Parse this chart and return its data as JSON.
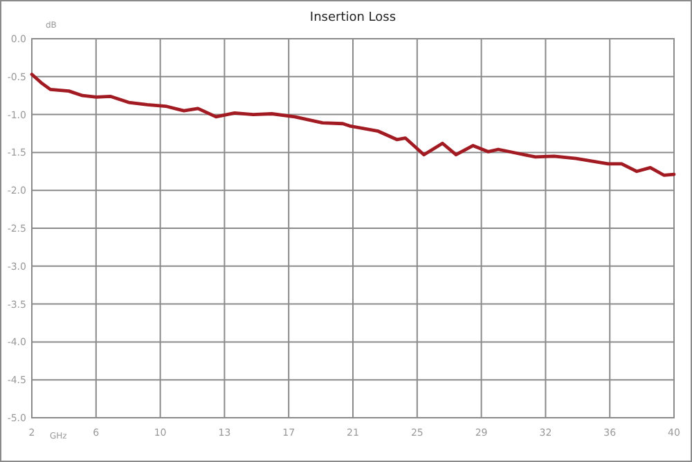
{
  "chart_data": {
    "type": "line",
    "title": "Insertion Loss",
    "xlabel": "GHz",
    "ylabel": "dB",
    "x": [
      2,
      2.55,
      3.1,
      4.19,
      5.0,
      5.82,
      6.64,
      7.73,
      8.83,
      9.92,
      11.0,
      11.83,
      12.9,
      14.0,
      15.1,
      16.2,
      17.56,
      19.2,
      20.4,
      20.8,
      22.5,
      23.6,
      24.1,
      25.2,
      26.3,
      27.1,
      28.1,
      29.0,
      29.6,
      30.7,
      31.8,
      32.9,
      34.2,
      36.1,
      36.9,
      37.8,
      38.6,
      39.4,
      40
    ],
    "series": [
      {
        "color": "#a31b22",
        "values": [
          -0.47,
          -0.58,
          -0.67,
          -0.69,
          -0.75,
          -0.77,
          -0.76,
          -0.84,
          -0.87,
          -0.89,
          -0.95,
          -0.92,
          -1.03,
          -0.98,
          -1.0,
          -0.99,
          -1.03,
          -1.11,
          -1.12,
          -1.15,
          -1.22,
          -1.33,
          -1.31,
          -1.53,
          -1.38,
          -1.53,
          -1.41,
          -1.49,
          -1.46,
          -1.51,
          -1.56,
          -1.55,
          -1.58,
          -1.65,
          -1.65,
          -1.75,
          -1.7,
          -1.8,
          -1.79
        ]
      }
    ],
    "xlim": [
      2,
      40
    ],
    "xticks": [
      2,
      {
        "value": 5.8,
        "label": "6"
      },
      {
        "value": 9.6,
        "label": "10"
      },
      {
        "value": 13.4,
        "label": "13"
      },
      {
        "value": 17.2,
        "label": "17"
      },
      21,
      {
        "value": 24.8,
        "label": "25"
      },
      {
        "value": 28.6,
        "label": "29"
      },
      {
        "value": 32.4,
        "label": "32"
      },
      {
        "value": 36.2,
        "label": "36"
      },
      40
    ],
    "ylim": [
      -5,
      0
    ],
    "yticks": [
      {
        "value": 0,
        "label": "0.0"
      },
      {
        "value": -0.5,
        "label": "-0.5"
      },
      {
        "value": -1,
        "label": "-1.0"
      },
      {
        "value": -1.5,
        "label": "-1.5"
      },
      {
        "value": -2,
        "label": "-2.0"
      },
      {
        "value": -2.5,
        "label": "-2.5"
      },
      {
        "value": -3,
        "label": "-3.0"
      },
      {
        "value": -3.5,
        "label": "-3.5"
      },
      {
        "value": -4,
        "label": "-4.0"
      },
      {
        "value": -4.5,
        "label": "-4.5"
      },
      {
        "value": -5,
        "label": "-5.0"
      }
    ],
    "grid": true,
    "marker": "none",
    "line_style": "solid"
  }
}
